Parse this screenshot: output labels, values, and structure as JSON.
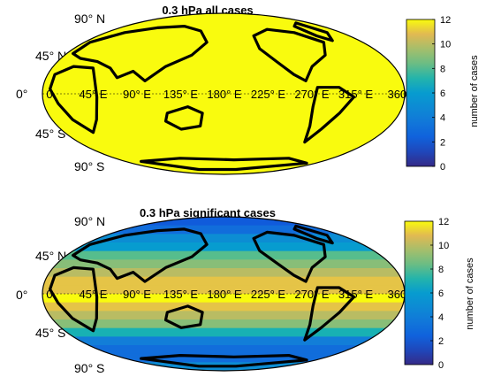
{
  "chart_data": [
    {
      "type": "heatmap",
      "title": "0.3 hPa all cases",
      "projection": "Robinson-like world map",
      "lat_labels": [
        "90° N",
        "45° N",
        "0°",
        "45° S",
        "90° S"
      ],
      "lon_labels": [
        "0",
        "45° E",
        "90° E",
        "135° E",
        "180° E",
        "225° E",
        "270° E",
        "315° E",
        "360°"
      ],
      "colorbar": {
        "label": "number of cases",
        "range": [
          0,
          12
        ],
        "ticks": [
          "0",
          "2",
          "4",
          "6",
          "8",
          "10",
          "12"
        ],
        "colormap": "parula"
      },
      "field_description": "Nearly uniform value 12 everywhere",
      "lat_band_values": [
        12,
        12,
        12,
        12,
        12,
        12,
        12,
        12,
        12,
        12,
        12,
        12,
        12,
        12,
        12,
        12,
        12,
        12
      ]
    },
    {
      "type": "heatmap",
      "title": "0.3 hPa significant cases",
      "projection": "Robinson-like world map",
      "lat_labels": [
        "90° N",
        "45° N",
        "0°",
        "45° S",
        "90° S"
      ],
      "lon_labels": [
        "0",
        "45° E",
        "90° E",
        "135° E",
        "180° E",
        "225° E",
        "270° E",
        "315° E",
        "360°"
      ],
      "colorbar": {
        "label": "number of cases",
        "range": [
          0,
          12
        ],
        "ticks": [
          "0",
          "2",
          "4",
          "6",
          "8",
          "10",
          "12"
        ],
        "colormap": "parula"
      },
      "lat_band_values": [
        2,
        3,
        5,
        6,
        8,
        9,
        10,
        11,
        11,
        12,
        11,
        10,
        9,
        7,
        4,
        3,
        3,
        5
      ]
    }
  ]
}
